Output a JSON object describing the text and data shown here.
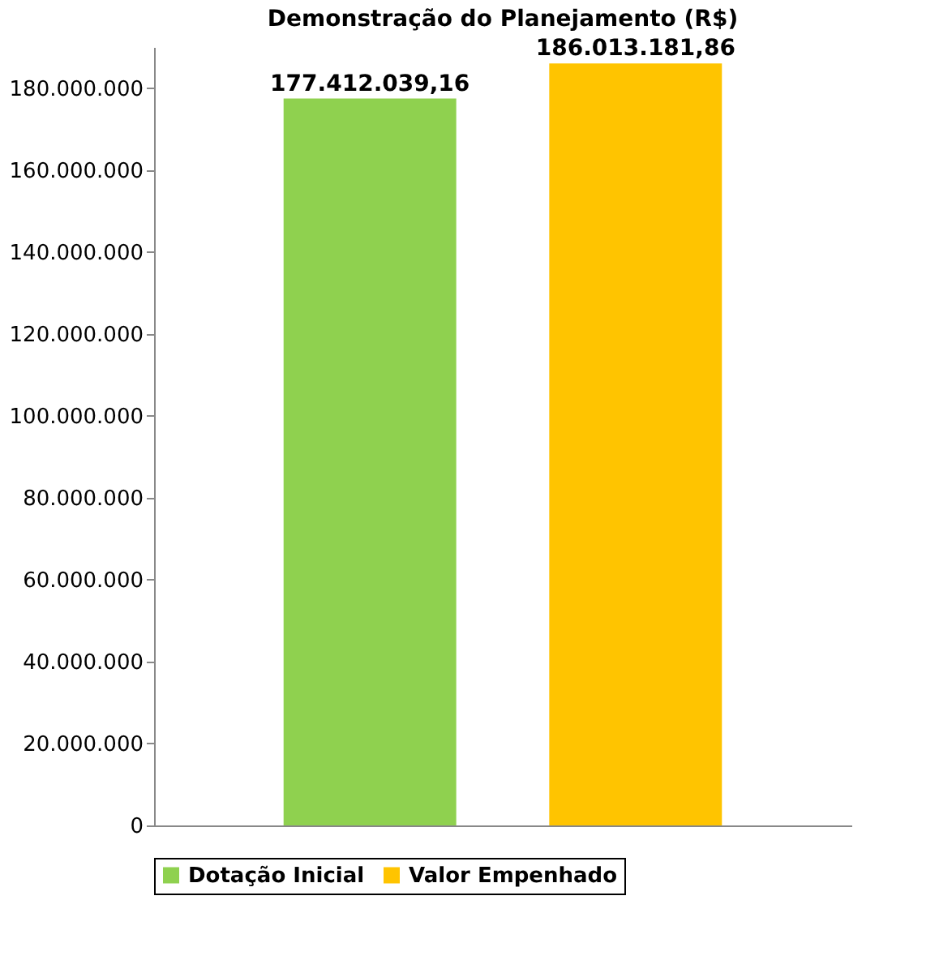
{
  "chart_data": {
    "type": "bar",
    "title": "Demonstração do Planejamento (R$)",
    "categories": [
      null
    ],
    "series": [
      {
        "name": "Dotação Inicial",
        "color": "#8fd14f",
        "values": [
          177412039.16
        ],
        "value_labels": [
          "177.412.039,16"
        ]
      },
      {
        "name": "Valor Empenhado",
        "color": "#ffc400",
        "values": [
          186013181.86
        ],
        "value_labels": [
          "186.013.181,86"
        ]
      }
    ],
    "ylim": [
      0,
      190000000
    ],
    "yticks": [
      {
        "value": 0,
        "label": "0"
      },
      {
        "value": 20000000,
        "label": "20.000.000"
      },
      {
        "value": 40000000,
        "label": "40.000.000"
      },
      {
        "value": 60000000,
        "label": "60.000.000"
      },
      {
        "value": 80000000,
        "label": "80.000.000"
      },
      {
        "value": 100000000,
        "label": "100.000.000"
      },
      {
        "value": 120000000,
        "label": "120.000.000"
      },
      {
        "value": 140000000,
        "label": "140.000.000"
      },
      {
        "value": 160000000,
        "label": "160.000.000"
      },
      {
        "value": 180000000,
        "label": "180.000.000"
      }
    ],
    "grid": false,
    "legend": "bottom"
  }
}
